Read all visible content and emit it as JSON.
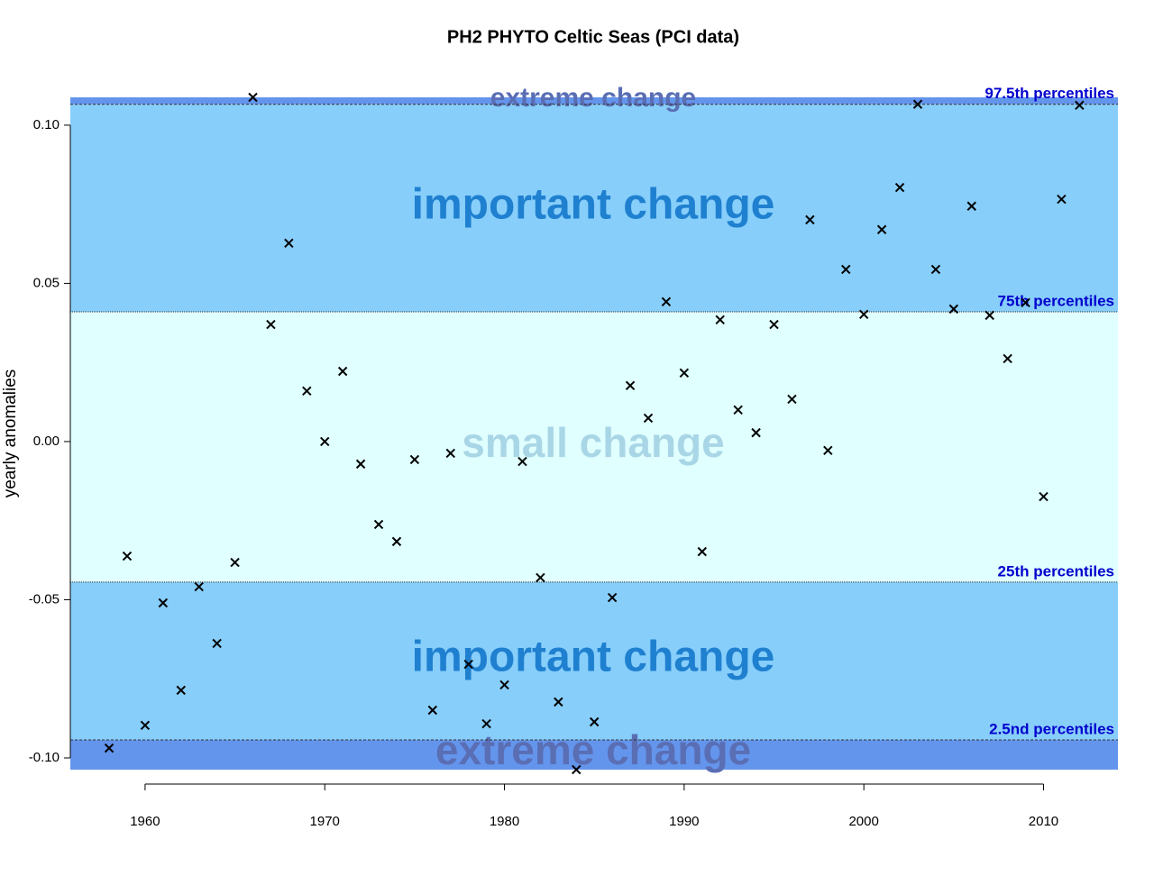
{
  "chart_data": {
    "type": "scatter",
    "title": "PH2 PHYTO Celtic Seas (PCI data)",
    "y_label": "yearly anomalies",
    "marker_color": "#000000",
    "x": [
      1958,
      1959,
      1960,
      1961,
      1962,
      1963,
      1964,
      1965,
      1966,
      1967,
      1968,
      1969,
      1970,
      1971,
      1972,
      1973,
      1974,
      1975,
      1976,
      1977,
      1978,
      1979,
      1980,
      1981,
      1982,
      1983,
      1984,
      1985,
      1986,
      1987,
      1988,
      1989,
      1990,
      1991,
      1992,
      1993,
      1994,
      1995,
      1996,
      1997,
      1998,
      1999,
      2000,
      2001,
      2002,
      2003,
      2004,
      2005,
      2006,
      2007,
      2008,
      2009,
      2010,
      2011,
      2012
    ],
    "values": [
      -0.0969,
      -0.0362,
      -0.0897,
      -0.051,
      -0.0786,
      -0.0459,
      -0.0638,
      -0.0382,
      0.1088,
      0.037,
      0.0627,
      0.016,
      0.0,
      0.0222,
      -0.0071,
      -0.0262,
      -0.0316,
      -0.0057,
      -0.0849,
      -0.0037,
      -0.0704,
      -0.0892,
      -0.0769,
      -0.0063,
      -0.043,
      -0.0823,
      -0.1037,
      -0.0886,
      -0.0493,
      0.0177,
      0.0074,
      0.0442,
      0.0217,
      -0.0348,
      0.0385,
      0.01,
      0.0028,
      0.037,
      0.0134,
      0.0701,
      -0.0028,
      0.0544,
      0.0402,
      0.067,
      0.0803,
      0.1066,
      0.0544,
      0.0419,
      0.0744,
      0.0399,
      0.0262,
      0.0439,
      -0.0174,
      0.0766,
      0.1063
    ],
    "xlim": [
      1955.84,
      2014.14
    ],
    "ylim": [
      -0.1037,
      0.1088
    ],
    "xticks": [
      1960,
      1970,
      1980,
      1990,
      2000,
      2010
    ],
    "yticks": [
      {
        "value": -0.1,
        "label": "-0.10"
      },
      -0.05,
      {
        "value": 0,
        "label": "0.00"
      },
      0.05,
      {
        "value": 0.1,
        "label": "0.10"
      }
    ],
    "percentiles": [
      {
        "value": 0.1066,
        "label": "97.5th percentiles"
      },
      {
        "value": 0.041,
        "label": "75th percentiles"
      },
      {
        "value": -0.0444,
        "label": "25th percentiles"
      },
      {
        "value": -0.0943,
        "label": "2.5nd percentiles"
      }
    ],
    "percentile_label_color": "#0000cd",
    "zones": [
      {
        "label": "extreme change",
        "color": "#6495ed",
        "text_color": "#5a6eb4"
      },
      {
        "label": "important change",
        "color": "#87cefa",
        "text_color": "#1f80d0"
      },
      {
        "label": "small change",
        "color": "#e0ffff",
        "text_color": "#a9d6e6"
      },
      {
        "label": "important change",
        "color": "#87cefa",
        "text_color": "#1f80d0"
      },
      {
        "label": "extreme change",
        "color": "#6495ed",
        "text_color": "#5a6eb4"
      }
    ]
  }
}
